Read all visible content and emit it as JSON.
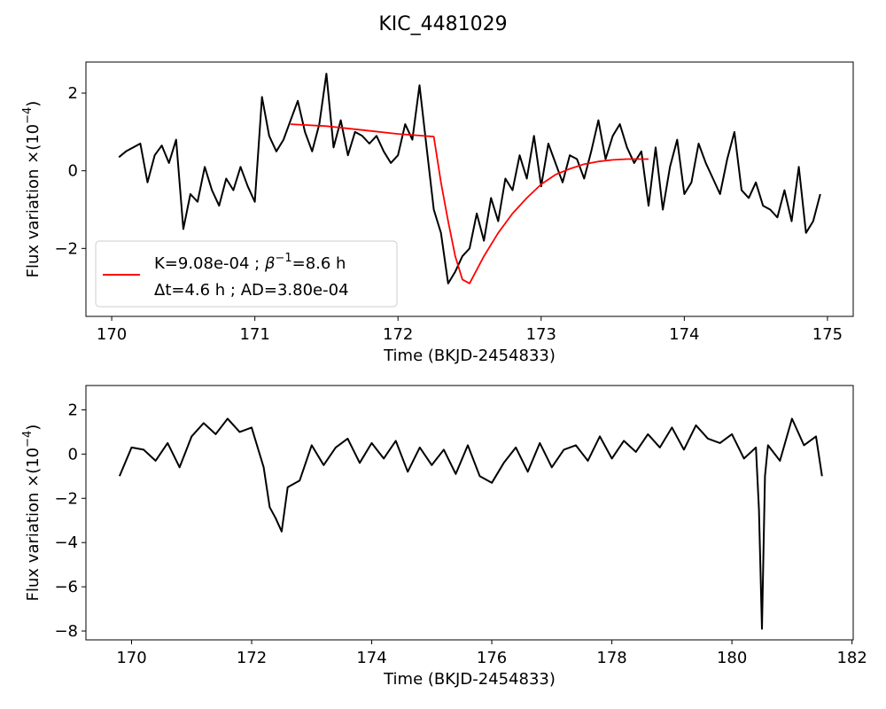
{
  "figure": {
    "title": "KIC_4481029"
  },
  "chart_data": [
    {
      "type": "line",
      "xlabel": "Time (BKJD-2454833)",
      "ylabel": "Flux variation ×(10",
      "ylabel_exp": "−4",
      "ylabel_close": ")",
      "xlim": [
        169.82,
        175.18
      ],
      "ylim": [
        -3.75,
        2.8
      ],
      "xticks": [
        170,
        171,
        172,
        173,
        174,
        175
      ],
      "xtick_labels": [
        "170",
        "171",
        "172",
        "173",
        "174",
        "175"
      ],
      "yticks": [
        -2,
        0,
        2
      ],
      "ytick_labels": [
        "−2",
        "0",
        "2"
      ],
      "grid": false,
      "legend": {
        "placement": "lower-left",
        "line1_a": "K=9.08e-04 ; ",
        "line1_sym": "β",
        "line1_sup": "−1",
        "line1_b": "=8.6 h",
        "line2": "Δt=4.6 h ; AD=3.80e-04"
      },
      "series": [
        {
          "color": "#000000",
          "x": [
            170.05,
            170.1,
            170.15,
            170.2,
            170.25,
            170.3,
            170.35,
            170.4,
            170.45,
            170.5,
            170.55,
            170.6,
            170.65,
            170.7,
            170.75,
            170.8,
            170.85,
            170.9,
            170.95,
            171.0,
            171.05,
            171.1,
            171.15,
            171.2,
            171.25,
            171.3,
            171.35,
            171.4,
            171.45,
            171.5,
            171.55,
            171.6,
            171.65,
            171.7,
            171.75,
            171.8,
            171.85,
            171.9,
            171.95,
            172.0,
            172.05,
            172.1,
            172.15,
            172.2,
            172.25,
            172.3,
            172.35,
            172.4,
            172.45,
            172.5,
            172.55,
            172.6,
            172.65,
            172.7,
            172.75,
            172.8,
            172.85,
            172.9,
            172.95,
            173.0,
            173.05,
            173.1,
            173.15,
            173.2,
            173.25,
            173.3,
            173.35,
            173.4,
            173.45,
            173.5,
            173.55,
            173.6,
            173.65,
            173.7,
            173.75,
            173.8,
            173.85,
            173.9,
            173.95,
            174.0,
            174.05,
            174.1,
            174.15,
            174.2,
            174.25,
            174.3,
            174.35,
            174.4,
            174.45,
            174.5,
            174.55,
            174.6,
            174.65,
            174.7,
            174.75,
            174.8,
            174.85,
            174.9,
            174.95
          ],
          "y": [
            0.35,
            0.5,
            0.6,
            0.7,
            -0.3,
            0.4,
            0.65,
            0.2,
            0.8,
            -1.5,
            -0.6,
            -0.8,
            0.1,
            -0.5,
            -0.9,
            -0.2,
            -0.5,
            0.1,
            -0.4,
            -0.8,
            1.9,
            0.9,
            0.5,
            0.8,
            1.3,
            1.8,
            1.0,
            0.5,
            1.2,
            2.5,
            0.6,
            1.3,
            0.4,
            1.0,
            0.9,
            0.7,
            0.9,
            0.5,
            0.2,
            0.4,
            1.2,
            0.8,
            2.2,
            0.6,
            -1.0,
            -1.6,
            -2.9,
            -2.6,
            -2.2,
            -2.0,
            -1.1,
            -1.8,
            -0.7,
            -1.3,
            -0.2,
            -0.5,
            0.4,
            -0.2,
            0.9,
            -0.4,
            0.7,
            0.2,
            -0.3,
            0.4,
            0.3,
            -0.2,
            0.5,
            1.3,
            0.3,
            0.9,
            1.2,
            0.6,
            0.2,
            0.5,
            -0.9,
            0.6,
            -1.0,
            0.1,
            0.8,
            -0.6,
            -0.3,
            0.7,
            0.2,
            -0.2,
            -0.6,
            0.3,
            1.0,
            -0.5,
            -0.7,
            -0.3,
            -0.9,
            -1.0,
            -1.2,
            -0.5,
            -1.3,
            0.1,
            -1.6,
            -1.3,
            -0.6
          ]
        },
        {
          "color": "#ff0000",
          "x": [
            171.25,
            171.5,
            171.75,
            172.0,
            172.25,
            172.3,
            172.35,
            172.4,
            172.45,
            172.5,
            172.6,
            172.7,
            172.8,
            172.9,
            173.0,
            173.1,
            173.2,
            173.3,
            173.4,
            173.5,
            173.6,
            173.75
          ],
          "y": [
            1.2,
            1.15,
            1.05,
            0.95,
            0.88,
            -0.3,
            -1.3,
            -2.2,
            -2.8,
            -2.9,
            -2.2,
            -1.6,
            -1.1,
            -0.7,
            -0.35,
            -0.1,
            0.05,
            0.17,
            0.24,
            0.28,
            0.3,
            0.3
          ]
        }
      ]
    },
    {
      "type": "line",
      "xlabel": "Time (BKJD-2454833)",
      "ylabel": "Flux variation ×(10",
      "ylabel_exp": "−4",
      "ylabel_close": ")",
      "xlim": [
        169.24,
        182.02
      ],
      "ylim": [
        -8.4,
        3.1
      ],
      "xticks": [
        170,
        172,
        174,
        176,
        178,
        180,
        182
      ],
      "xtick_labels": [
        "170",
        "172",
        "174",
        "176",
        "178",
        "180",
        "182"
      ],
      "yticks": [
        -8,
        -6,
        -4,
        -2,
        0,
        2
      ],
      "ytick_labels": [
        "−8",
        "−6",
        "−4",
        "−2",
        "0",
        "2"
      ],
      "grid": false,
      "series": [
        {
          "color": "#000000",
          "x": [
            169.8,
            170.0,
            170.2,
            170.4,
            170.6,
            170.8,
            171.0,
            171.2,
            171.4,
            171.6,
            171.8,
            172.0,
            172.2,
            172.3,
            172.4,
            172.5,
            172.6,
            172.8,
            173.0,
            173.2,
            173.4,
            173.6,
            173.8,
            174.0,
            174.2,
            174.4,
            174.6,
            174.8,
            175.0,
            175.2,
            175.4,
            175.6,
            175.8,
            176.0,
            176.2,
            176.4,
            176.6,
            176.8,
            177.0,
            177.2,
            177.4,
            177.6,
            177.8,
            178.0,
            178.2,
            178.4,
            178.6,
            178.8,
            179.0,
            179.2,
            179.4,
            179.6,
            179.8,
            180.0,
            180.2,
            180.4,
            180.45,
            180.5,
            180.55,
            180.6,
            180.8,
            181.0,
            181.2,
            181.4,
            181.5
          ],
          "y": [
            -1.0,
            0.3,
            0.2,
            -0.3,
            0.5,
            -0.6,
            0.8,
            1.4,
            0.9,
            1.6,
            1.0,
            1.2,
            -0.6,
            -2.4,
            -2.9,
            -3.5,
            -1.5,
            -1.2,
            0.4,
            -0.5,
            0.3,
            0.7,
            -0.4,
            0.5,
            -0.2,
            0.6,
            -0.8,
            0.3,
            -0.5,
            0.2,
            -0.9,
            0.4,
            -1.0,
            -1.3,
            -0.4,
            0.3,
            -0.8,
            0.5,
            -0.6,
            0.2,
            0.4,
            -0.3,
            0.8,
            -0.2,
            0.6,
            0.1,
            0.9,
            0.3,
            1.2,
            0.2,
            1.3,
            0.7,
            0.5,
            0.9,
            -0.2,
            0.3,
            -2.5,
            -7.9,
            -1.0,
            0.4,
            -0.3,
            1.6,
            0.4,
            0.8,
            -1.0
          ]
        }
      ]
    }
  ]
}
